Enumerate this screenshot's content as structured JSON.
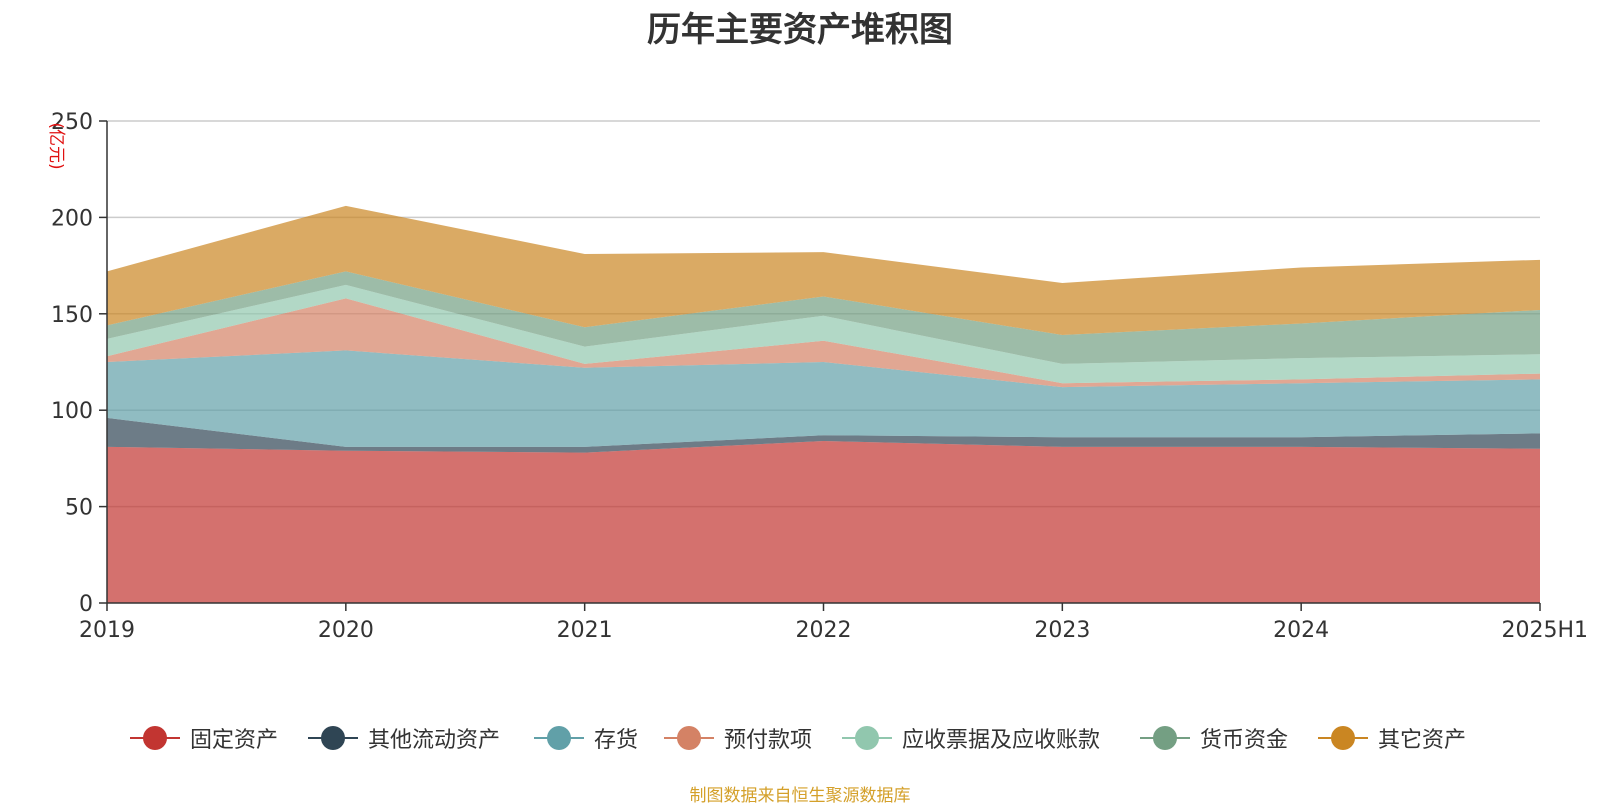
{
  "chart_data": {
    "type": "area",
    "stacked": true,
    "title": "历年主要资产堆积图",
    "unit_label": "(亿元)",
    "categories": [
      "2019",
      "2020",
      "2021",
      "2022",
      "2023",
      "2024",
      "2025H1"
    ],
    "ylim": [
      0,
      250
    ],
    "yticks": [
      0,
      50,
      100,
      150,
      200,
      250
    ],
    "grid": true,
    "legend_position": "bottom",
    "series": [
      {
        "name": "固定资产",
        "color": "#c23531",
        "values": [
          81,
          79,
          78,
          84,
          81,
          81,
          80
        ]
      },
      {
        "name": "其他流动资产",
        "color": "#2f4554",
        "values": [
          15,
          2,
          3,
          3,
          5,
          5,
          8
        ]
      },
      {
        "name": "存货",
        "color": "#61a0a8",
        "values": [
          29,
          50,
          41,
          38,
          26,
          28,
          28
        ]
      },
      {
        "name": "预付款项",
        "color": "#d48265",
        "values": [
          3,
          27,
          2,
          11,
          2,
          2,
          3
        ]
      },
      {
        "name": "应收票据及应收账款",
        "color": "#91c7ae",
        "values": [
          9,
          7,
          9,
          13,
          10,
          11,
          10
        ]
      },
      {
        "name": "货币资金",
        "color": "#749f83",
        "values": [
          7,
          7,
          10,
          10,
          15,
          18,
          23
        ]
      },
      {
        "name": "其它资产",
        "color": "#ca8622",
        "values": [
          28,
          34,
          38,
          23,
          27,
          29,
          26
        ]
      }
    ]
  },
  "footer": {
    "source": "制图数据来自恒生聚源数据库"
  }
}
